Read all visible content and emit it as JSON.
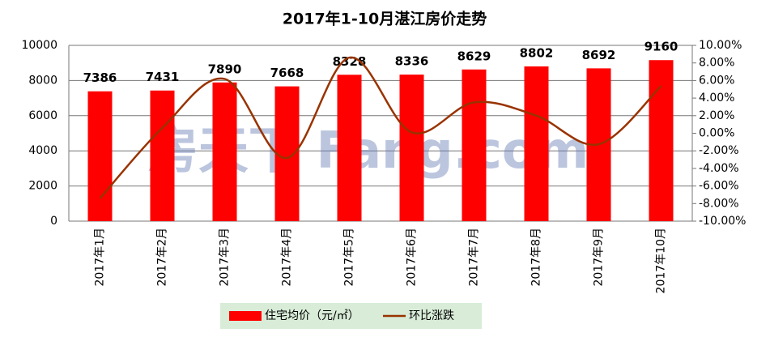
{
  "chart_data": {
    "type": "bar-line",
    "title": "2017年1-10月湛江房价走势",
    "watermark": "房天下 Fang.com",
    "categories": [
      "2017年1月",
      "2017年2月",
      "2017年3月",
      "2017年4月",
      "2017年5月",
      "2017年6月",
      "2017年7月",
      "2017年8月",
      "2017年9月",
      "2017年10月"
    ],
    "series": [
      {
        "name": "住宅均价（元/㎡）",
        "type": "bar",
        "color": "#ff0000",
        "values": [
          7386,
          7431,
          7890,
          7668,
          8328,
          8336,
          8629,
          8802,
          8692,
          9160
        ]
      },
      {
        "name": "环比涨跌",
        "type": "line",
        "axis": "y2",
        "color": "#993300",
        "values": [
          -7.4,
          0.61,
          6.18,
          -2.81,
          8.61,
          0.1,
          3.51,
          2.0,
          -1.25,
          5.38
        ]
      }
    ],
    "ylim": [
      0,
      10000
    ],
    "yticks": [
      0,
      2000,
      4000,
      6000,
      8000,
      10000
    ],
    "y2lim": [
      -10,
      10
    ],
    "y2ticks": [
      {
        "value": -10,
        "label": "-10.00%"
      },
      {
        "value": -8,
        "label": "-8.00%"
      },
      {
        "value": -6,
        "label": "-6.00%"
      },
      {
        "value": -4,
        "label": "-4.00%"
      },
      {
        "value": -2,
        "label": "-2.00%"
      },
      {
        "value": 0,
        "label": "0.00%"
      },
      {
        "value": 2,
        "label": "2.00%"
      },
      {
        "value": 4,
        "label": "4.00%"
      },
      {
        "value": 6,
        "label": "6.00%"
      },
      {
        "value": 8,
        "label": "8.00%"
      },
      {
        "value": 10,
        "label": "10.00%"
      }
    ],
    "grid": true,
    "legend": "bottom"
  }
}
